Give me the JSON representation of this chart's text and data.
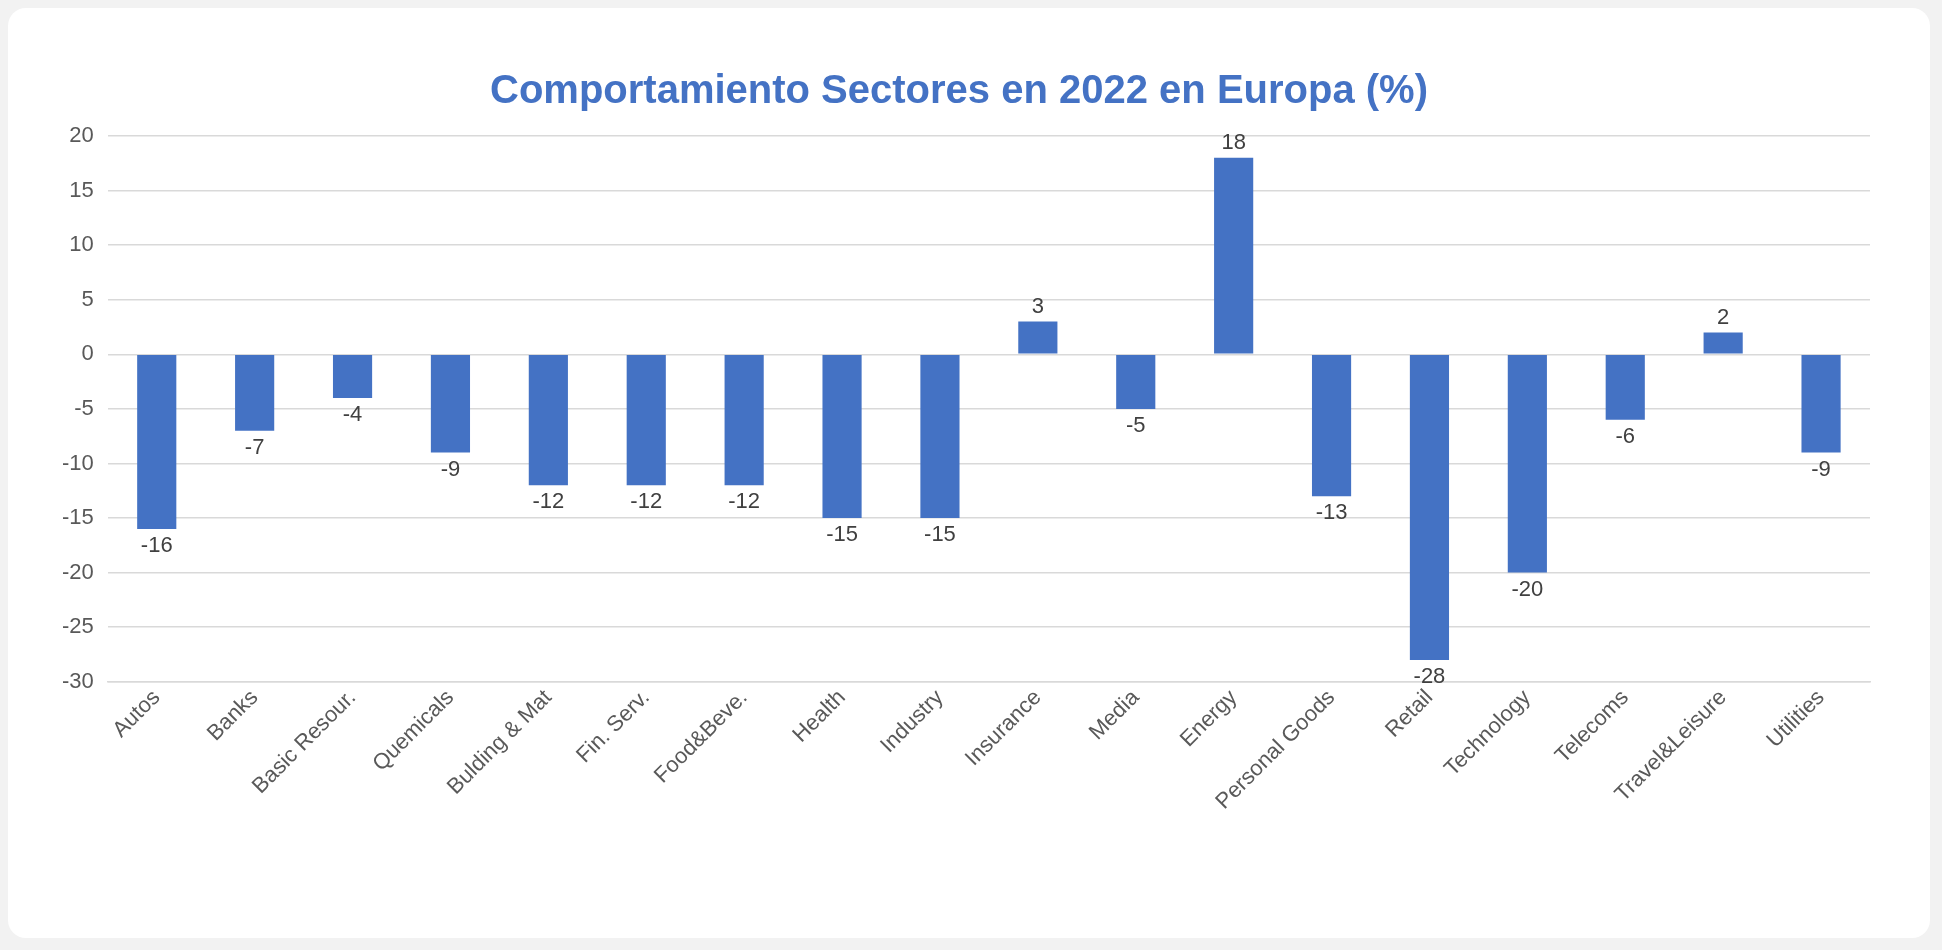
{
  "chart_data": {
    "type": "bar",
    "title": "Comportamiento Sectores en 2022 en Europa (%)",
    "categories": [
      "Autos",
      "Banks",
      "Basic Resour.",
      "Quemicals",
      "Bulding & Mat",
      "Fin. Serv.",
      "Food&Beve.",
      "Health",
      "Industry",
      "Insurance",
      "Media",
      "Energy",
      "Personal Goods",
      "Retail",
      "Technology",
      "Telecoms",
      "Travel&Leisure",
      "Utilities"
    ],
    "values": [
      -16,
      -7,
      -4,
      -9,
      -12,
      -12,
      -12,
      -15,
      -15,
      3,
      -5,
      18,
      -13,
      -28,
      -20,
      -6,
      2,
      -9
    ],
    "color": "#4472c4",
    "ylim": [
      -30,
      20
    ],
    "yticks": [
      -30,
      -25,
      -20,
      -15,
      -10,
      -5,
      0,
      5,
      10,
      15,
      20
    ],
    "grid": "y",
    "data_labels": true
  }
}
